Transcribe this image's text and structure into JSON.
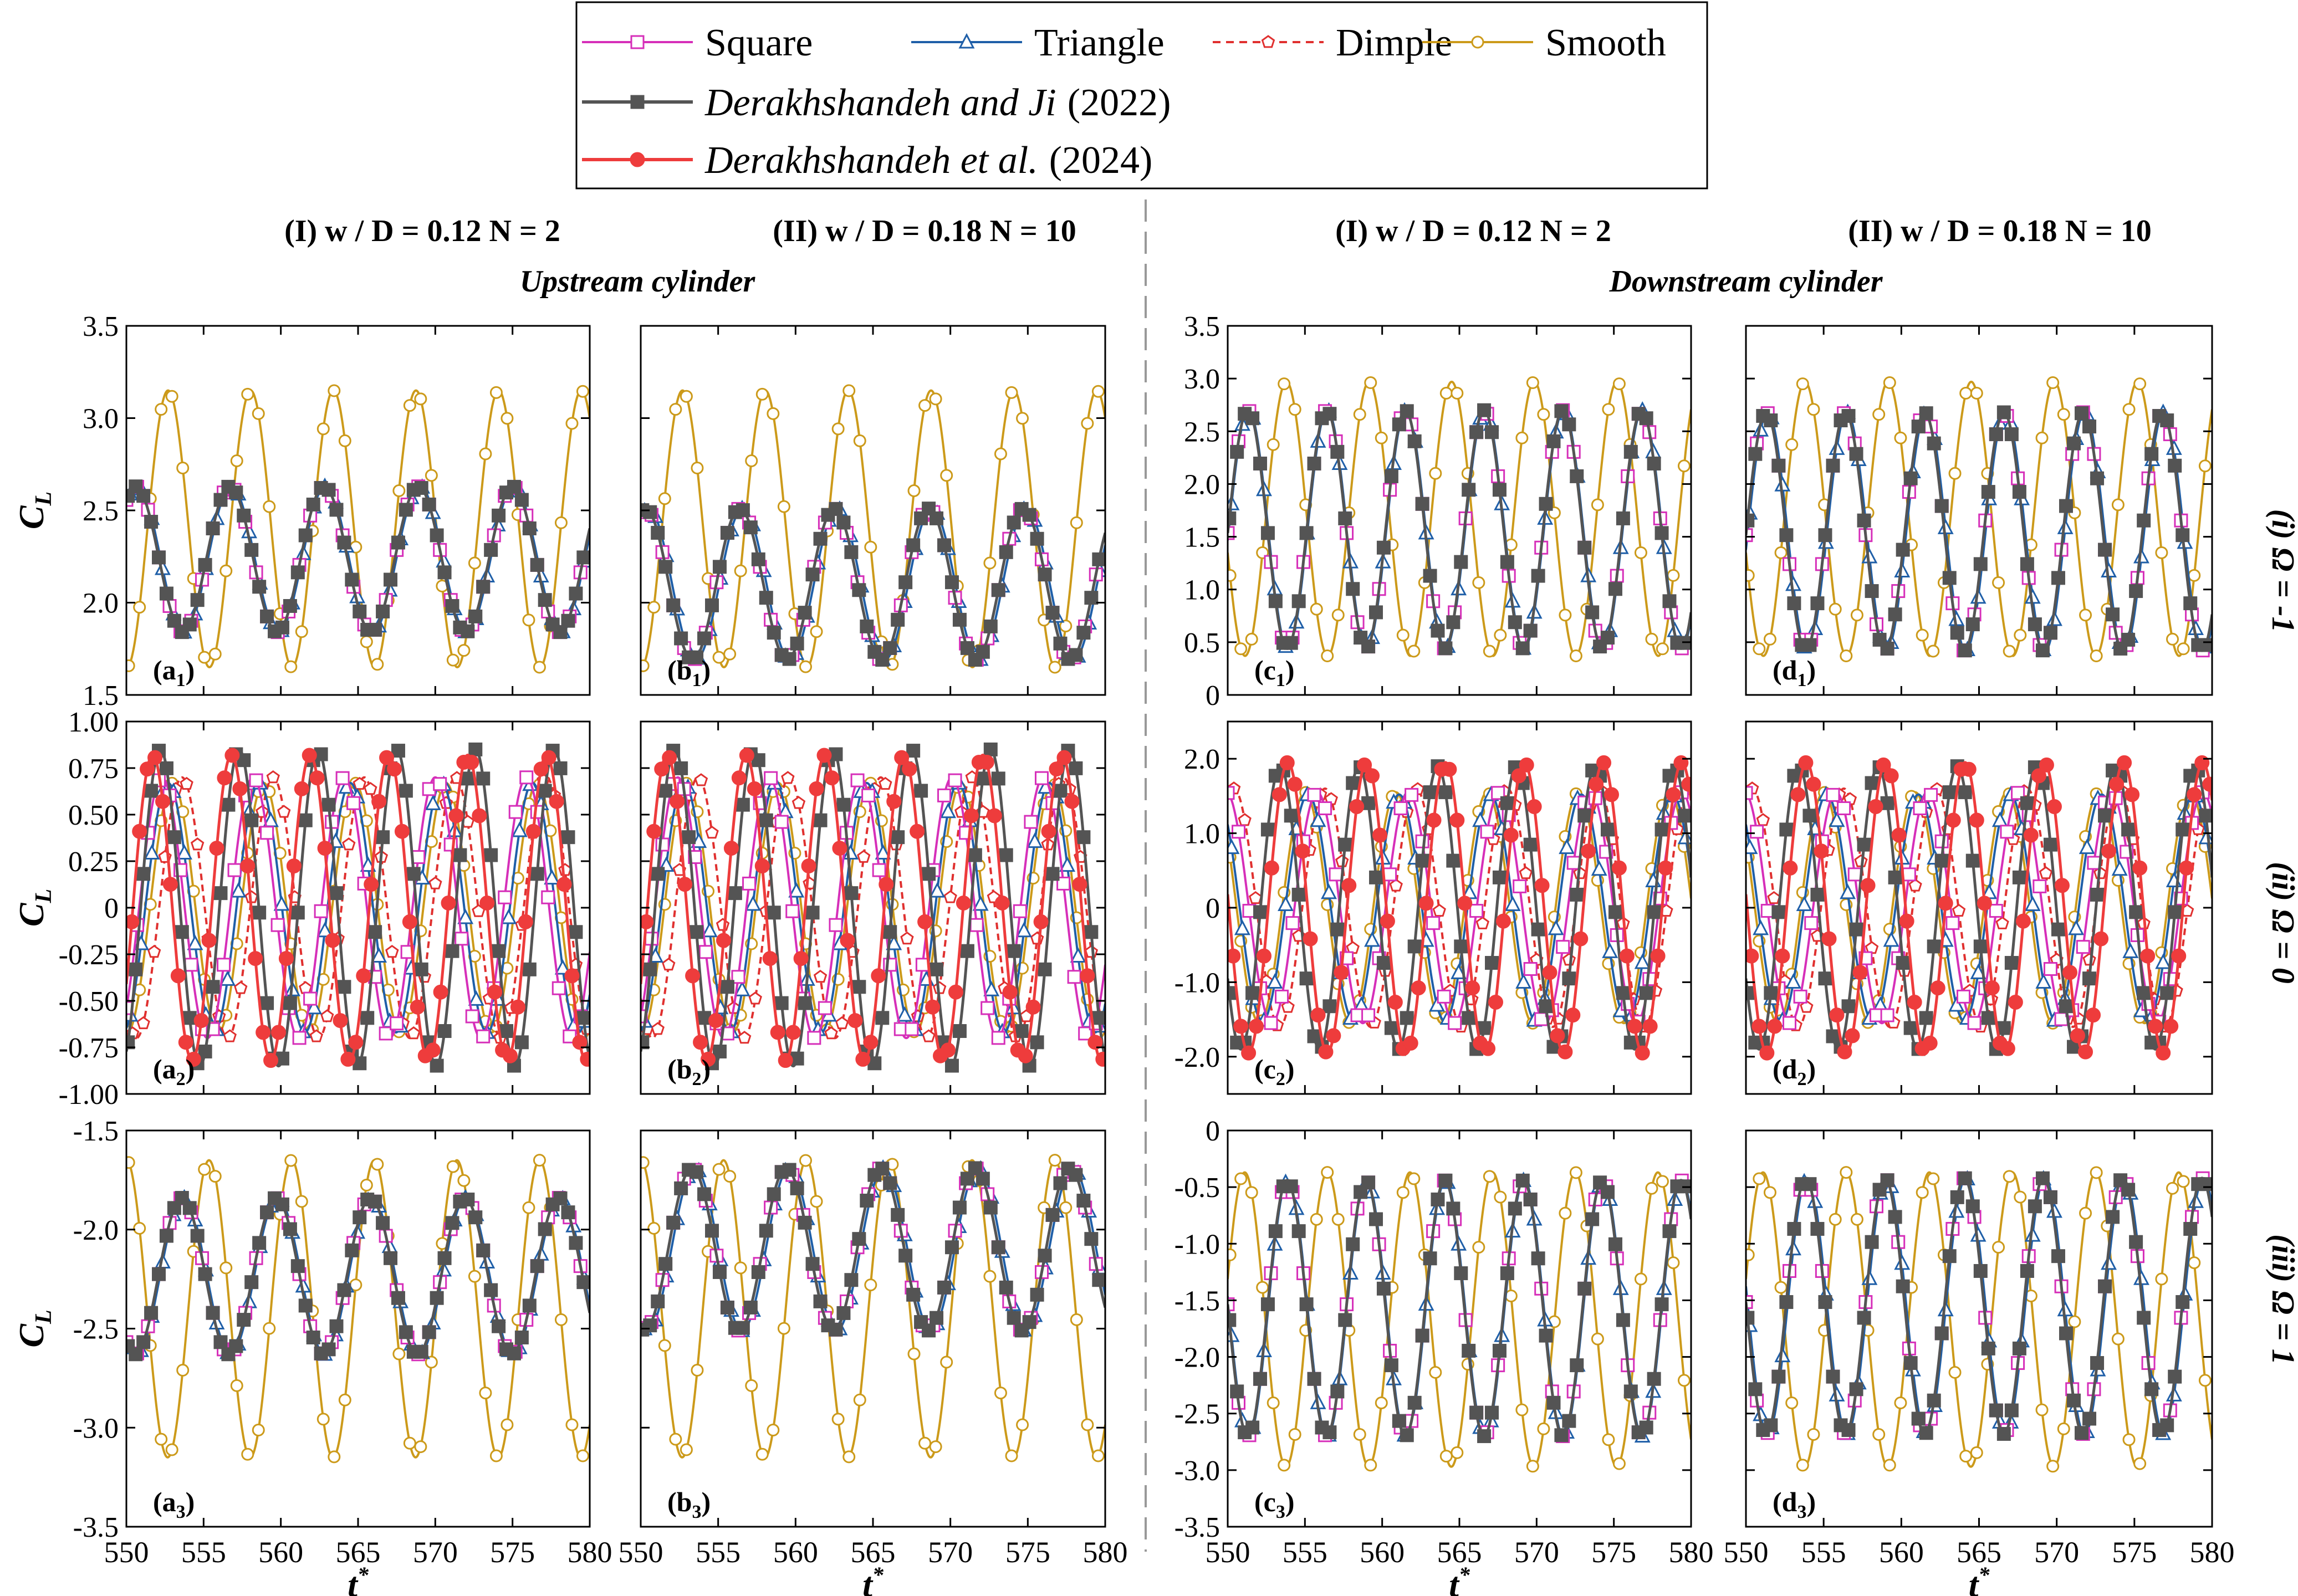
{
  "legend": {
    "entries": [
      {
        "label": "Square",
        "color": "#d62fb9",
        "marker": "square",
        "dash": false
      },
      {
        "label": "Triangle",
        "color": "#1f5fa8",
        "marker": "triangle",
        "dash": false
      },
      {
        "label": "Dimple",
        "color": "#e0302f",
        "marker": "pentagon",
        "dash": true
      },
      {
        "label": "Smooth",
        "color": "#cc9a1a",
        "marker": "circle",
        "dash": false
      },
      {
        "label": "Derakhshandeh and Ji",
        "year": "(2022)",
        "color": "#545454",
        "marker": "filled-square",
        "dash": false
      },
      {
        "label": "Derakhshandeh et al.",
        "year": "(2024)",
        "color": "#ee3c3c",
        "marker": "filled-circle",
        "dash": false
      }
    ]
  },
  "headers": {
    "col_a": "(I) w / D = 0.12 N = 2",
    "col_b": "(II) w / D = 0.18 N = 10",
    "col_c": "(I) w / D = 0.12 N = 2",
    "col_d": "(II) w / D = 0.18 N = 10",
    "upstream": "Upstream cylinder",
    "downstream": "Downstream cylinder"
  },
  "row_labels": [
    "(i) Ω = -1",
    "(ii) Ω = 0",
    "(iii) Ω = 1"
  ],
  "ylabel": "CL",
  "xlabel": "t*",
  "chart_data": {
    "type": "line",
    "x_range": [
      550,
      580
    ],
    "x_ticks": [
      550,
      555,
      560,
      565,
      570,
      575,
      580
    ],
    "series_names": [
      "Square",
      "Triangle",
      "Dimple",
      "Smooth",
      "Derakhshandeh and Ji (2022)",
      "Derakhshandeh et al. (2024)"
    ],
    "rows": [
      {
        "omega": -1,
        "panels": [
          {
            "id": "a1",
            "ylim": [
              1.5,
              3.5
            ],
            "yticks": [
              "3.5",
              "3.0",
              "2.5",
              "2.0",
              "1.5"
            ],
            "show_yticks": true,
            "curves": [
              {
                "series": "Smooth",
                "mean": 2.4,
                "amp": 0.75,
                "period": 5.35,
                "phase": 552.7
              },
              {
                "series": "Square",
                "mean": 2.235,
                "amp": 0.395,
                "period": 6.1,
                "phase": 550.6
              },
              {
                "series": "Triangle",
                "mean": 2.235,
                "amp": 0.395,
                "period": 6.1,
                "phase": 550.7
              },
              {
                "series": "Derakhshandeh and Ji (2022)",
                "mean": 2.235,
                "amp": 0.395,
                "period": 6.1,
                "phase": 550.6
              }
            ]
          },
          {
            "id": "b1",
            "ylim": [
              1.5,
              3.5
            ],
            "show_yticks": false,
            "curves": [
              {
                "series": "Smooth",
                "mean": 2.4,
                "amp": 0.75,
                "period": 5.35,
                "phase": 552.7
              },
              {
                "series": "Square",
                "mean": 2.1,
                "amp": 0.41,
                "period": 6.1,
                "phase": 550.3
              },
              {
                "series": "Triangle",
                "mean": 2.1,
                "amp": 0.41,
                "period": 6.1,
                "phase": 550.5
              },
              {
                "series": "Derakhshandeh and Ji (2022)",
                "mean": 2.1,
                "amp": 0.41,
                "period": 6.1,
                "phase": 550.3
              }
            ]
          },
          {
            "id": "c1",
            "ylim": [
              0,
              3.5
            ],
            "yticks": [
              "3.5",
              "3.0",
              "2.5",
              "2.0",
              "1.5",
              "1.0",
              "0.5",
              "0"
            ],
            "show_yticks": true,
            "curves": [
              {
                "series": "Smooth",
                "mean": 1.67,
                "amp": 1.3,
                "period": 5.35,
                "phase": 553.8
              },
              {
                "series": "Square",
                "mean": 1.57,
                "amp": 1.13,
                "period": 5.1,
                "phase": 551.3
              },
              {
                "series": "Triangle",
                "mean": 1.57,
                "amp": 1.13,
                "period": 5.1,
                "phase": 551.35
              },
              {
                "series": "Derakhshandeh and Ji (2022)",
                "mean": 1.57,
                "amp": 1.13,
                "period": 5.1,
                "phase": 551.3
              }
            ]
          },
          {
            "id": "d1",
            "ylim": [
              0,
              3.5
            ],
            "show_yticks": false,
            "curves": [
              {
                "series": "Smooth",
                "mean": 1.67,
                "amp": 1.3,
                "period": 5.35,
                "phase": 553.8
              },
              {
                "series": "Square",
                "mean": 1.55,
                "amp": 1.13,
                "period": 5.1,
                "phase": 551.3
              },
              {
                "series": "Triangle",
                "mean": 1.55,
                "amp": 1.13,
                "period": 5.1,
                "phase": 551.4
              },
              {
                "series": "Derakhshandeh and Ji (2022)",
                "mean": 1.55,
                "amp": 1.13,
                "period": 5.1,
                "phase": 551.3
              }
            ]
          }
        ]
      },
      {
        "omega": 0,
        "panels": [
          {
            "id": "a2",
            "ylim": [
              -1.0,
              1.0
            ],
            "yticks": [
              "1.00",
              "0.75",
              "0.50",
              "0.25",
              "0",
              "-0.25",
              "-0.50",
              "-0.75",
              "-1.00"
            ],
            "show_yticks": true,
            "curves": [
              {
                "series": "Smooth",
                "mean": 0,
                "amp": 0.67,
                "period": 5.9,
                "phase": 553.0
              },
              {
                "series": "Square",
                "mean": 0,
                "amp": 0.7,
                "period": 5.9,
                "phase": 552.3
              },
              {
                "series": "Triangle",
                "mean": 0,
                "amp": 0.67,
                "period": 5.9,
                "phase": 552.7
              },
              {
                "series": "Dimple",
                "mean": 0,
                "amp": 0.7,
                "period": 5.9,
                "phase": 553.6
              },
              {
                "series": "Derakhshandeh and Ji (2022)",
                "mean": 0,
                "amp": 0.85,
                "period": 5.1,
                "phase": 552.2
              },
              {
                "series": "Derakhshandeh et al. (2024)",
                "mean": 0,
                "amp": 0.82,
                "period": 5.1,
                "phase": 551.7
              }
            ]
          },
          {
            "id": "b2",
            "ylim": [
              -1.0,
              1.0
            ],
            "show_yticks": false,
            "curves": [
              {
                "series": "Smooth",
                "mean": 0,
                "amp": 0.67,
                "period": 5.9,
                "phase": 553.0
              },
              {
                "series": "Square",
                "mean": 0,
                "amp": 0.7,
                "period": 5.9,
                "phase": 552.4
              },
              {
                "series": "Triangle",
                "mean": 0,
                "amp": 0.67,
                "period": 5.9,
                "phase": 552.8
              },
              {
                "series": "Dimple",
                "mean": 0,
                "amp": 0.7,
                "period": 5.9,
                "phase": 553.7
              },
              {
                "series": "Derakhshandeh and Ji (2022)",
                "mean": 0,
                "amp": 0.85,
                "period": 5.1,
                "phase": 552.2
              },
              {
                "series": "Derakhshandeh et al. (2024)",
                "mean": 0,
                "amp": 0.82,
                "period": 5.1,
                "phase": 551.7
              }
            ]
          },
          {
            "id": "c2",
            "ylim": [
              -2.5,
              2.5
            ],
            "yticks": [
              "2.0",
              "1.0",
              "0",
              "-1.0",
              "-2.0"
            ],
            "ytick_values": [
              2.0,
              1.0,
              0,
              -1.0,
              -2.0
            ],
            "show_yticks": true,
            "curves": [
              {
                "series": "Smooth",
                "mean": 0,
                "amp": 1.55,
                "period": 5.9,
                "phase": 555.0
              },
              {
                "series": "Square",
                "mean": 0,
                "amp": 1.55,
                "period": 5.9,
                "phase": 555.8
              },
              {
                "series": "Triangle",
                "mean": 0,
                "amp": 1.52,
                "period": 5.9,
                "phase": 555.2
              },
              {
                "series": "Dimple",
                "mean": 0,
                "amp": 1.6,
                "period": 5.9,
                "phase": 556.3
              },
              {
                "series": "Derakhshandeh and Ji (2022)",
                "mean": 0,
                "amp": 1.9,
                "period": 5.1,
                "phase": 553.4
              },
              {
                "series": "Derakhshandeh et al. (2024)",
                "mean": 0,
                "amp": 1.95,
                "period": 5.1,
                "phase": 553.9
              }
            ]
          },
          {
            "id": "d2",
            "ylim": [
              -2.5,
              2.5
            ],
            "show_yticks": false,
            "curves": [
              {
                "series": "Smooth",
                "mean": 0,
                "amp": 1.55,
                "period": 5.9,
                "phase": 555.0
              },
              {
                "series": "Square",
                "mean": 0,
                "amp": 1.55,
                "period": 5.9,
                "phase": 555.8
              },
              {
                "series": "Triangle",
                "mean": 0,
                "amp": 1.52,
                "period": 5.9,
                "phase": 555.2
              },
              {
                "series": "Dimple",
                "mean": 0,
                "amp": 1.6,
                "period": 5.9,
                "phase": 556.3
              },
              {
                "series": "Derakhshandeh and Ji (2022)",
                "mean": 0,
                "amp": 1.9,
                "period": 5.1,
                "phase": 553.4
              },
              {
                "series": "Derakhshandeh et al. (2024)",
                "mean": 0,
                "amp": 1.95,
                "period": 5.1,
                "phase": 553.9
              }
            ]
          }
        ]
      },
      {
        "omega": 1,
        "panels": [
          {
            "id": "a3",
            "ylim": [
              -3.5,
              -1.5
            ],
            "yticks": [
              "-1.5",
              "-2.0",
              "-2.5",
              "-3.0",
              "-3.5"
            ],
            "show_yticks": true,
            "curves": [
              {
                "series": "Smooth",
                "mean": -2.4,
                "amp": 0.75,
                "period": 5.35,
                "phase": 550.0
              },
              {
                "series": "Square",
                "mean": -2.235,
                "amp": 0.395,
                "period": 6.1,
                "phase": 553.6
              },
              {
                "series": "Triangle",
                "mean": -2.235,
                "amp": 0.395,
                "period": 6.1,
                "phase": 553.7
              },
              {
                "series": "Derakhshandeh and Ji (2022)",
                "mean": -2.235,
                "amp": 0.395,
                "period": 6.1,
                "phase": 553.6
              }
            ]
          },
          {
            "id": "b3",
            "ylim": [
              -3.5,
              -1.5
            ],
            "show_yticks": false,
            "curves": [
              {
                "series": "Smooth",
                "mean": -2.4,
                "amp": 0.75,
                "period": 5.35,
                "phase": 550.0
              },
              {
                "series": "Square",
                "mean": -2.1,
                "amp": 0.41,
                "period": 6.1,
                "phase": 553.3
              },
              {
                "series": "Triangle",
                "mean": -2.1,
                "amp": 0.41,
                "period": 6.1,
                "phase": 553.5
              },
              {
                "series": "Derakhshandeh and Ji (2022)",
                "mean": -2.1,
                "amp": 0.41,
                "period": 6.1,
                "phase": 553.3
              }
            ]
          },
          {
            "id": "c3",
            "ylim": [
              -3.5,
              0
            ],
            "yticks": [
              "0",
              "-0.5",
              "-1.0",
              "-1.5",
              "-2.0",
              "-2.5",
              "-3.0",
              "-3.5"
            ],
            "show_yticks": true,
            "curves": [
              {
                "series": "Smooth",
                "mean": -1.67,
                "amp": 1.3,
                "period": 5.35,
                "phase": 551.1
              },
              {
                "series": "Square",
                "mean": -1.57,
                "amp": 1.13,
                "period": 5.1,
                "phase": 553.85
              },
              {
                "series": "Triangle",
                "mean": -1.57,
                "amp": 1.13,
                "period": 5.1,
                "phase": 553.9
              },
              {
                "series": "Derakhshandeh and Ji (2022)",
                "mean": -1.57,
                "amp": 1.13,
                "period": 5.1,
                "phase": 553.85
              }
            ]
          },
          {
            "id": "d3",
            "ylim": [
              -3.5,
              0
            ],
            "show_yticks": false,
            "curves": [
              {
                "series": "Smooth",
                "mean": -1.67,
                "amp": 1.3,
                "period": 5.35,
                "phase": 551.1
              },
              {
                "series": "Square",
                "mean": -1.55,
                "amp": 1.13,
                "period": 5.1,
                "phase": 553.85
              },
              {
                "series": "Triangle",
                "mean": -1.55,
                "amp": 1.13,
                "period": 5.1,
                "phase": 553.95
              },
              {
                "series": "Derakhshandeh and Ji (2022)",
                "mean": -1.55,
                "amp": 1.13,
                "period": 5.1,
                "phase": 553.85
              }
            ]
          }
        ]
      }
    ]
  }
}
